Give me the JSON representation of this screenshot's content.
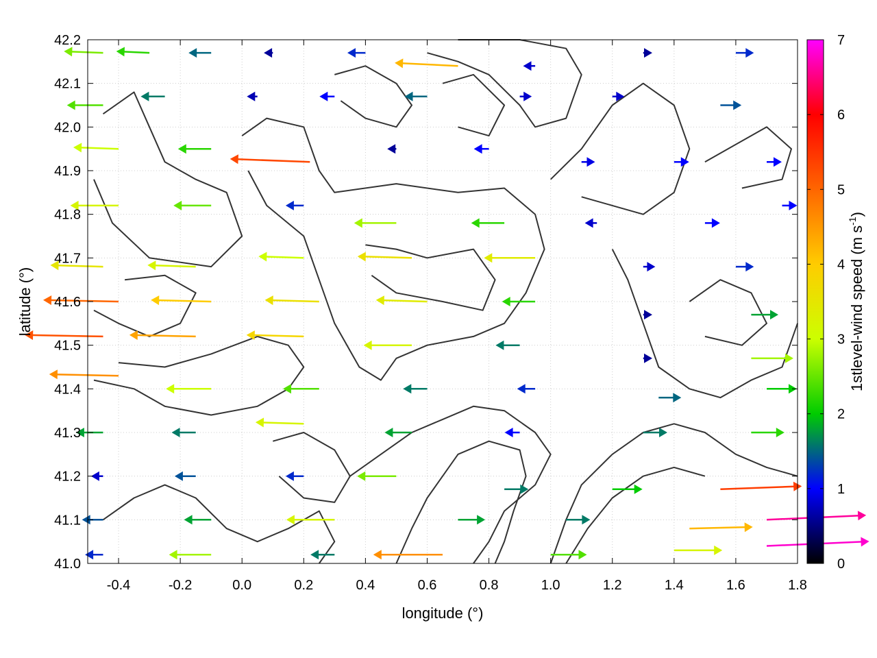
{
  "chart_data": {
    "type": "vector-field",
    "title": "",
    "xlabel": "longitude (°)",
    "ylabel": "latitude (°)",
    "colorbar_label_main": "1stlevel-wind speed (m s",
    "colorbar_label_sup": "-1",
    "colorbar_label_close": ")",
    "xlim": [
      -0.5,
      1.8
    ],
    "ylim": [
      41.0,
      42.2
    ],
    "cblim": [
      0,
      7
    ],
    "x_ticks": [
      "-0.4",
      "-0.2",
      "0.0",
      "0.2",
      "0.4",
      "0.6",
      "0.8",
      "1.0",
      "1.2",
      "1.4",
      "1.6",
      "1.8"
    ],
    "x_tick_values": [
      -0.4,
      -0.2,
      0.0,
      0.2,
      0.4,
      0.6,
      0.8,
      1.0,
      1.2,
      1.4,
      1.6,
      1.8
    ],
    "y_ticks": [
      "41.0",
      "41.1",
      "41.2",
      "41.3",
      "41.4",
      "41.5",
      "41.6",
      "41.7",
      "41.8",
      "41.9",
      "42.0",
      "42.1",
      "42.2"
    ],
    "y_tick_values": [
      41.0,
      41.1,
      41.2,
      41.3,
      41.4,
      41.5,
      41.6,
      41.7,
      41.8,
      41.9,
      42.0,
      42.1,
      42.2
    ],
    "cb_ticks": [
      "0",
      "1",
      "2",
      "3",
      "4",
      "5",
      "6",
      "7"
    ],
    "cb_tick_values": [
      0,
      1,
      2,
      3,
      4,
      5,
      6,
      7
    ],
    "colormap": [
      "#000000",
      "#0000ff",
      "#00cc00",
      "#ccff00",
      "#ffcc00",
      "#ff6600",
      "#ff0000",
      "#ff00ff"
    ],
    "grid": true,
    "grid_color": "#cccccc",
    "contour_color": "#333333",
    "vectors_note": "wind arrows: x, y in degrees; u, v in m/s (negative u = westward)",
    "vectors": [
      {
        "x": -0.45,
        "y": 42.17,
        "u": -2.6,
        "v": 0.1
      },
      {
        "x": -0.3,
        "y": 42.17,
        "u": -2.2,
        "v": 0.1
      },
      {
        "x": -0.1,
        "y": 42.17,
        "u": -1.5,
        "v": 0.0
      },
      {
        "x": 0.1,
        "y": 42.17,
        "u": -0.6,
        "v": 0.0
      },
      {
        "x": 0.4,
        "y": 42.17,
        "u": -1.2,
        "v": 0.0
      },
      {
        "x": 0.7,
        "y": 42.14,
        "u": -4.2,
        "v": 0.2
      },
      {
        "x": 0.95,
        "y": 42.14,
        "u": -0.8,
        "v": 0.0
      },
      {
        "x": 1.3,
        "y": 42.17,
        "u": 0.6,
        "v": 0.0
      },
      {
        "x": 1.6,
        "y": 42.17,
        "u": 1.2,
        "v": 0.0
      },
      {
        "x": -0.45,
        "y": 42.05,
        "u": -2.4,
        "v": 0.0
      },
      {
        "x": -0.25,
        "y": 42.07,
        "u": -1.6,
        "v": 0.0
      },
      {
        "x": 0.05,
        "y": 42.07,
        "u": -0.7,
        "v": 0.0
      },
      {
        "x": 0.3,
        "y": 42.07,
        "u": -1.0,
        "v": 0.0
      },
      {
        "x": 0.6,
        "y": 42.07,
        "u": -1.5,
        "v": 0.0
      },
      {
        "x": 0.9,
        "y": 42.07,
        "u": 0.8,
        "v": 0.0
      },
      {
        "x": 1.2,
        "y": 42.07,
        "u": 0.8,
        "v": 0.0
      },
      {
        "x": 1.55,
        "y": 42.05,
        "u": 1.4,
        "v": 0.0
      },
      {
        "x": -0.4,
        "y": 41.95,
        "u": -3.0,
        "v": 0.1
      },
      {
        "x": -0.1,
        "y": 41.95,
        "u": -2.2,
        "v": 0.0
      },
      {
        "x": 0.22,
        "y": 41.92,
        "u": -5.3,
        "v": 0.2
      },
      {
        "x": 0.5,
        "y": 41.95,
        "u": -0.6,
        "v": 0.0
      },
      {
        "x": 0.8,
        "y": 41.95,
        "u": -1.0,
        "v": 0.0
      },
      {
        "x": 1.1,
        "y": 41.92,
        "u": 0.9,
        "v": 0.0
      },
      {
        "x": 1.4,
        "y": 41.92,
        "u": 1.0,
        "v": 0.0
      },
      {
        "x": 1.7,
        "y": 41.92,
        "u": 1.0,
        "v": 0.0
      },
      {
        "x": -0.4,
        "y": 41.82,
        "u": -3.2,
        "v": 0.0
      },
      {
        "x": -0.1,
        "y": 41.82,
        "u": -2.5,
        "v": 0.0
      },
      {
        "x": 0.2,
        "y": 41.82,
        "u": -1.2,
        "v": 0.0
      },
      {
        "x": 0.5,
        "y": 41.78,
        "u": -2.8,
        "v": 0.0
      },
      {
        "x": 0.85,
        "y": 41.78,
        "u": -2.2,
        "v": 0.0
      },
      {
        "x": 1.15,
        "y": 41.78,
        "u": -0.8,
        "v": 0.0
      },
      {
        "x": 1.5,
        "y": 41.78,
        "u": 1.0,
        "v": 0.0
      },
      {
        "x": 1.75,
        "y": 41.82,
        "u": 1.0,
        "v": 0.0
      },
      {
        "x": -0.45,
        "y": 41.68,
        "u": -3.5,
        "v": 0.1
      },
      {
        "x": -0.15,
        "y": 41.68,
        "u": -3.2,
        "v": 0.1
      },
      {
        "x": 0.2,
        "y": 41.7,
        "u": -3.0,
        "v": 0.1
      },
      {
        "x": 0.55,
        "y": 41.7,
        "u": -3.6,
        "v": 0.1
      },
      {
        "x": 0.95,
        "y": 41.7,
        "u": -3.4,
        "v": 0.0
      },
      {
        "x": 1.3,
        "y": 41.68,
        "u": 0.8,
        "v": 0.0
      },
      {
        "x": 1.6,
        "y": 41.68,
        "u": 1.2,
        "v": 0.0
      },
      {
        "x": -0.4,
        "y": 41.6,
        "u": -5.0,
        "v": 0.1
      },
      {
        "x": -0.1,
        "y": 41.6,
        "u": -4.0,
        "v": 0.1
      },
      {
        "x": 0.25,
        "y": 41.6,
        "u": -3.6,
        "v": 0.1
      },
      {
        "x": 0.6,
        "y": 41.6,
        "u": -3.4,
        "v": 0.1
      },
      {
        "x": 0.95,
        "y": 41.6,
        "u": -2.2,
        "v": 0.0
      },
      {
        "x": 1.3,
        "y": 41.57,
        "u": 0.6,
        "v": 0.0
      },
      {
        "x": 1.65,
        "y": 41.57,
        "u": 1.8,
        "v": 0.0
      },
      {
        "x": -0.45,
        "y": 41.52,
        "u": -5.2,
        "v": 0.1
      },
      {
        "x": -0.15,
        "y": 41.52,
        "u": -4.4,
        "v": 0.1
      },
      {
        "x": 0.2,
        "y": 41.52,
        "u": -3.8,
        "v": 0.1
      },
      {
        "x": 0.55,
        "y": 41.5,
        "u": -3.2,
        "v": 0.0
      },
      {
        "x": 0.9,
        "y": 41.5,
        "u": -1.6,
        "v": 0.0
      },
      {
        "x": 1.3,
        "y": 41.47,
        "u": 0.6,
        "v": 0.0
      },
      {
        "x": 1.65,
        "y": 41.47,
        "u": 2.8,
        "v": 0.0
      },
      {
        "x": -0.4,
        "y": 41.43,
        "u": -4.6,
        "v": 0.1
      },
      {
        "x": -0.1,
        "y": 41.4,
        "u": -3.0,
        "v": 0.0
      },
      {
        "x": 0.25,
        "y": 41.4,
        "u": -2.4,
        "v": 0.0
      },
      {
        "x": 0.6,
        "y": 41.4,
        "u": -1.6,
        "v": 0.0
      },
      {
        "x": 0.95,
        "y": 41.4,
        "u": -1.2,
        "v": 0.0
      },
      {
        "x": 1.35,
        "y": 41.38,
        "u": 1.5,
        "v": 0.0
      },
      {
        "x": 1.7,
        "y": 41.4,
        "u": 2.0,
        "v": 0.0
      },
      {
        "x": -0.45,
        "y": 41.3,
        "u": -1.8,
        "v": 0.0
      },
      {
        "x": -0.15,
        "y": 41.3,
        "u": -1.6,
        "v": 0.0
      },
      {
        "x": 0.2,
        "y": 41.32,
        "u": -3.2,
        "v": 0.1
      },
      {
        "x": 0.55,
        "y": 41.3,
        "u": -1.8,
        "v": 0.0
      },
      {
        "x": 0.9,
        "y": 41.3,
        "u": -1.0,
        "v": 0.0
      },
      {
        "x": 1.3,
        "y": 41.3,
        "u": 1.6,
        "v": 0.0
      },
      {
        "x": 1.65,
        "y": 41.3,
        "u": 2.2,
        "v": 0.0
      },
      {
        "x": -0.45,
        "y": 41.2,
        "u": -0.8,
        "v": 0.0
      },
      {
        "x": -0.15,
        "y": 41.2,
        "u": -1.4,
        "v": 0.0
      },
      {
        "x": 0.2,
        "y": 41.2,
        "u": -1.2,
        "v": 0.0
      },
      {
        "x": 0.5,
        "y": 41.2,
        "u": -2.6,
        "v": 0.0
      },
      {
        "x": 0.85,
        "y": 41.17,
        "u": 1.6,
        "v": 0.0
      },
      {
        "x": 1.2,
        "y": 41.17,
        "u": 2.0,
        "v": 0.0
      },
      {
        "x": 1.55,
        "y": 41.17,
        "u": 5.4,
        "v": 0.2
      },
      {
        "x": -0.45,
        "y": 41.1,
        "u": -1.4,
        "v": 0.0
      },
      {
        "x": -0.1,
        "y": 41.1,
        "u": -1.8,
        "v": 0.0
      },
      {
        "x": 0.3,
        "y": 41.1,
        "u": -3.2,
        "v": 0.0
      },
      {
        "x": 0.7,
        "y": 41.1,
        "u": 1.8,
        "v": 0.0
      },
      {
        "x": 1.05,
        "y": 41.1,
        "u": 1.6,
        "v": 0.0
      },
      {
        "x": 1.45,
        "y": 41.08,
        "u": 4.2,
        "v": 0.1
      },
      {
        "x": 1.7,
        "y": 41.1,
        "u": 6.6,
        "v": 0.3
      },
      {
        "x": -0.45,
        "y": 41.02,
        "u": -1.2,
        "v": 0.0
      },
      {
        "x": -0.1,
        "y": 41.02,
        "u": -2.8,
        "v": 0.0
      },
      {
        "x": 0.3,
        "y": 41.02,
        "u": -1.6,
        "v": 0.0
      },
      {
        "x": 0.65,
        "y": 41.02,
        "u": -4.6,
        "v": 0.0
      },
      {
        "x": 1.0,
        "y": 41.02,
        "u": 2.4,
        "v": 0.0
      },
      {
        "x": 1.4,
        "y": 41.03,
        "u": 3.2,
        "v": 0.0
      },
      {
        "x": 1.7,
        "y": 41.04,
        "u": 6.8,
        "v": 0.3
      }
    ],
    "contours": [
      [
        [
          -0.45,
          42.03
        ],
        [
          -0.35,
          42.08
        ],
        [
          -0.3,
          42.0
        ],
        [
          -0.25,
          41.92
        ],
        [
          -0.15,
          41.88
        ],
        [
          -0.05,
          41.85
        ],
        [
          0.0,
          41.75
        ],
        [
          -0.1,
          41.68
        ],
        [
          -0.3,
          41.7
        ],
        [
          -0.42,
          41.78
        ],
        [
          -0.48,
          41.88
        ]
      ],
      [
        [
          0.0,
          41.98
        ],
        [
          0.08,
          42.02
        ],
        [
          0.2,
          42.0
        ],
        [
          0.25,
          41.9
        ],
        [
          0.3,
          41.85
        ],
        [
          0.5,
          41.87
        ],
        [
          0.7,
          41.85
        ],
        [
          0.85,
          41.86
        ],
        [
          0.95,
          41.8
        ],
        [
          0.98,
          41.72
        ],
        [
          0.92,
          41.62
        ],
        [
          0.85,
          41.55
        ],
        [
          0.75,
          41.52
        ],
        [
          0.6,
          41.5
        ],
        [
          0.5,
          41.47
        ],
        [
          0.45,
          41.42
        ],
        [
          0.38,
          41.45
        ],
        [
          0.3,
          41.55
        ],
        [
          0.25,
          41.65
        ],
        [
          0.2,
          41.75
        ],
        [
          0.08,
          41.82
        ],
        [
          0.02,
          41.9
        ]
      ],
      [
        [
          0.4,
          41.73
        ],
        [
          0.5,
          41.72
        ],
        [
          0.6,
          41.7
        ],
        [
          0.75,
          41.72
        ],
        [
          0.82,
          41.65
        ],
        [
          0.78,
          41.58
        ],
        [
          0.65,
          41.6
        ],
        [
          0.5,
          41.62
        ],
        [
          0.42,
          41.66
        ]
      ],
      [
        [
          0.3,
          42.12
        ],
        [
          0.4,
          42.14
        ],
        [
          0.5,
          42.1
        ],
        [
          0.55,
          42.05
        ],
        [
          0.5,
          42.0
        ],
        [
          0.4,
          42.02
        ],
        [
          0.32,
          42.06
        ]
      ],
      [
        [
          0.6,
          42.17
        ],
        [
          0.7,
          42.15
        ],
        [
          0.8,
          42.12
        ],
        [
          0.9,
          42.05
        ],
        [
          0.95,
          42.0
        ],
        [
          1.05,
          42.02
        ],
        [
          1.1,
          42.12
        ],
        [
          1.05,
          42.18
        ],
        [
          0.9,
          42.2
        ],
        [
          0.7,
          42.2
        ]
      ],
      [
        [
          0.65,
          42.1
        ],
        [
          0.75,
          42.12
        ],
        [
          0.85,
          42.05
        ],
        [
          0.8,
          41.98
        ],
        [
          0.7,
          42.0
        ]
      ],
      [
        [
          1.0,
          41.88
        ],
        [
          1.1,
          41.95
        ],
        [
          1.2,
          42.05
        ],
        [
          1.3,
          42.1
        ],
        [
          1.4,
          42.05
        ],
        [
          1.45,
          41.95
        ],
        [
          1.4,
          41.85
        ],
        [
          1.3,
          41.8
        ],
        [
          1.2,
          41.82
        ],
        [
          1.1,
          41.84
        ]
      ],
      [
        [
          1.2,
          41.72
        ],
        [
          1.25,
          41.65
        ],
        [
          1.3,
          41.55
        ],
        [
          1.35,
          41.45
        ],
        [
          1.45,
          41.4
        ],
        [
          1.55,
          41.38
        ],
        [
          1.65,
          41.42
        ],
        [
          1.75,
          41.45
        ],
        [
          1.8,
          41.55
        ]
      ],
      [
        [
          1.45,
          41.6
        ],
        [
          1.55,
          41.65
        ],
        [
          1.65,
          41.62
        ],
        [
          1.7,
          41.55
        ],
        [
          1.62,
          41.5
        ],
        [
          1.5,
          41.52
        ]
      ],
      [
        [
          1.5,
          41.92
        ],
        [
          1.6,
          41.96
        ],
        [
          1.7,
          42.0
        ],
        [
          1.78,
          41.95
        ],
        [
          1.75,
          41.88
        ],
        [
          1.62,
          41.86
        ]
      ],
      [
        [
          -0.48,
          41.58
        ],
        [
          -0.4,
          41.55
        ],
        [
          -0.3,
          41.52
        ],
        [
          -0.2,
          41.55
        ],
        [
          -0.15,
          41.62
        ],
        [
          -0.25,
          41.66
        ],
        [
          -0.38,
          41.65
        ]
      ],
      [
        [
          -0.48,
          41.42
        ],
        [
          -0.35,
          41.4
        ],
        [
          -0.25,
          41.36
        ],
        [
          -0.1,
          41.34
        ],
        [
          0.05,
          41.36
        ],
        [
          0.15,
          41.4
        ],
        [
          0.2,
          41.45
        ],
        [
          0.15,
          41.5
        ],
        [
          0.05,
          41.52
        ],
        [
          -0.1,
          41.48
        ],
        [
          -0.25,
          41.45
        ],
        [
          -0.4,
          41.46
        ]
      ],
      [
        [
          0.35,
          41.2
        ],
        [
          0.45,
          41.25
        ],
        [
          0.55,
          41.3
        ],
        [
          0.65,
          41.33
        ],
        [
          0.75,
          41.36
        ],
        [
          0.85,
          41.35
        ],
        [
          0.95,
          41.3
        ],
        [
          1.0,
          41.25
        ],
        [
          0.95,
          41.18
        ],
        [
          0.85,
          41.12
        ],
        [
          0.8,
          41.05
        ],
        [
          0.75,
          41.0
        ]
      ],
      [
        [
          0.5,
          41.0
        ],
        [
          0.55,
          41.08
        ],
        [
          0.6,
          41.15
        ],
        [
          0.65,
          41.2
        ],
        [
          0.7,
          41.25
        ],
        [
          0.8,
          41.28
        ],
        [
          0.9,
          41.26
        ],
        [
          0.92,
          41.2
        ],
        [
          0.88,
          41.12
        ],
        [
          0.85,
          41.05
        ],
        [
          0.82,
          41.0
        ]
      ],
      [
        [
          1.0,
          41.0
        ],
        [
          1.05,
          41.1
        ],
        [
          1.1,
          41.18
        ],
        [
          1.2,
          41.25
        ],
        [
          1.3,
          41.3
        ],
        [
          1.4,
          41.32
        ],
        [
          1.5,
          41.3
        ],
        [
          1.6,
          41.25
        ],
        [
          1.7,
          41.22
        ],
        [
          1.8,
          41.2
        ]
      ],
      [
        [
          1.05,
          41.0
        ],
        [
          1.12,
          41.08
        ],
        [
          1.2,
          41.15
        ],
        [
          1.3,
          41.2
        ],
        [
          1.4,
          41.22
        ],
        [
          1.5,
          41.2
        ]
      ],
      [
        [
          -0.45,
          41.1
        ],
        [
          -0.35,
          41.15
        ],
        [
          -0.25,
          41.18
        ],
        [
          -0.15,
          41.15
        ],
        [
          -0.05,
          41.08
        ],
        [
          0.05,
          41.05
        ],
        [
          0.15,
          41.08
        ],
        [
          0.25,
          41.12
        ],
        [
          0.3,
          41.05
        ],
        [
          0.25,
          41.0
        ]
      ],
      [
        [
          0.1,
          41.28
        ],
        [
          0.2,
          41.3
        ],
        [
          0.3,
          41.26
        ],
        [
          0.35,
          41.2
        ],
        [
          0.3,
          41.14
        ],
        [
          0.2,
          41.15
        ],
        [
          0.12,
          41.2
        ]
      ]
    ]
  }
}
